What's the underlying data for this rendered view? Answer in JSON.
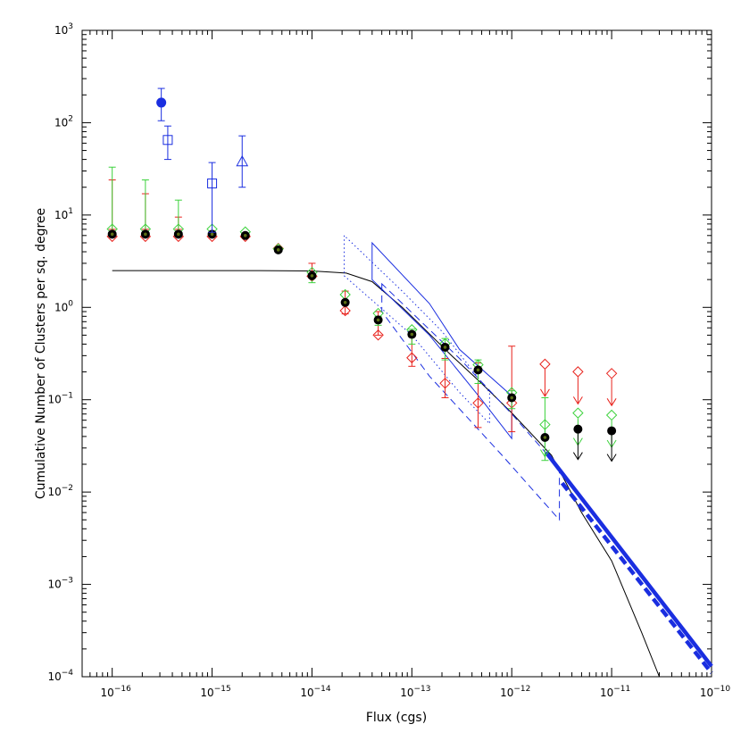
{
  "chart_data": {
    "type": "scatter",
    "xlabel": "Flux (cgs)",
    "ylabel": "Cumulative Number of Clusters per sq. degree",
    "x_scale": "log",
    "y_scale": "log",
    "xlim": [
      5e-17,
      1e-10
    ],
    "ylim": [
      0.0001,
      1000.0
    ],
    "x_ticks": [
      {
        "value": 1e-16,
        "base": "10",
        "exp": "−16"
      },
      {
        "value": 1e-15,
        "base": "10",
        "exp": "−15"
      },
      {
        "value": 1e-14,
        "base": "10",
        "exp": "−14"
      },
      {
        "value": 1e-13,
        "base": "10",
        "exp": "−13"
      },
      {
        "value": 1e-12,
        "base": "10",
        "exp": "−12"
      },
      {
        "value": 1e-11,
        "base": "10",
        "exp": "−11"
      },
      {
        "value": 1e-10,
        "base": "10",
        "exp": "−10"
      }
    ],
    "y_ticks": [
      {
        "value": 0.0001,
        "base": "10",
        "exp": "−4"
      },
      {
        "value": 0.001,
        "base": "10",
        "exp": "−3"
      },
      {
        "value": 0.01,
        "base": "10",
        "exp": "−2"
      },
      {
        "value": 0.1,
        "base": "10",
        "exp": "−1"
      },
      {
        "value": 1,
        "base": "10",
        "exp": "0"
      },
      {
        "value": 10,
        "base": "10",
        "exp": "1"
      },
      {
        "value": 100,
        "base": "10",
        "exp": "2"
      },
      {
        "value": 1000,
        "base": "10",
        "exp": "3"
      }
    ],
    "grid": false,
    "legend": "none",
    "colors": {
      "black": "#000000",
      "red": "#e8221c",
      "green": "#3cd23c",
      "olive": "#5a6e14",
      "blue": "#1a2ee0"
    },
    "lines": [
      {
        "id": "model-curve",
        "color": "black",
        "dash": "solid",
        "width": 1,
        "points": [
          [
            1e-16,
            2.5
          ],
          [
            1e-15,
            2.5
          ],
          [
            3e-15,
            2.5
          ],
          [
            1e-14,
            2.48
          ],
          [
            2.2e-14,
            2.35
          ],
          [
            4e-14,
            1.9
          ],
          [
            8e-14,
            1.0
          ],
          [
            1.3e-13,
            0.6
          ],
          [
            2.5e-13,
            0.3
          ],
          [
            5e-13,
            0.15
          ],
          [
            1e-12,
            0.072
          ],
          [
            2.5e-12,
            0.025
          ],
          [
            5e-12,
            0.006
          ],
          [
            1e-11,
            0.0018
          ],
          [
            2e-11,
            0.0003
          ],
          [
            3e-11,
            0.0001
          ]
        ]
      },
      {
        "id": "blue-bold-solid",
        "color": "blue",
        "dash": "solid",
        "width": 4.5,
        "points": [
          [
            2.2e-12,
            0.027
          ],
          [
            1e-10,
            0.00013
          ]
        ]
      },
      {
        "id": "blue-bold-dashed",
        "color": "blue",
        "dash": "dashed",
        "width": 4.5,
        "points": [
          [
            3.2e-12,
            0.0125
          ],
          [
            1e-10,
            0.00011
          ]
        ]
      },
      {
        "id": "bowtie-solid",
        "color": "blue",
        "dash": "solid",
        "width": 1,
        "closed": true,
        "points": [
          [
            4e-14,
            5.0
          ],
          [
            4e-14,
            2.0
          ],
          [
            1.5e-13,
            0.5
          ],
          [
            5e-13,
            0.1
          ],
          [
            1e-12,
            0.038
          ],
          [
            1e-12,
            0.11
          ],
          [
            3e-13,
            0.35
          ],
          [
            1.5e-13,
            1.1
          ]
        ]
      },
      {
        "id": "bowtie-dotted",
        "color": "blue",
        "dash": "dotted",
        "width": 1,
        "closed": true,
        "points": [
          [
            2.1e-14,
            6.0
          ],
          [
            2.1e-14,
            2.2
          ],
          [
            1e-13,
            0.5
          ],
          [
            3e-13,
            0.12
          ],
          [
            6e-13,
            0.055
          ],
          [
            6e-13,
            0.12
          ],
          [
            2e-13,
            0.55
          ],
          [
            8e-14,
            1.5
          ]
        ]
      },
      {
        "id": "bowtie-dashed",
        "color": "blue",
        "dash": "dashed",
        "width": 1,
        "closed": true,
        "points": [
          [
            5e-14,
            1.8
          ],
          [
            5e-14,
            0.9
          ],
          [
            1.5e-13,
            0.18
          ],
          [
            8e-13,
            0.025
          ],
          [
            3e-12,
            0.005
          ],
          [
            3e-12,
            0.018
          ],
          [
            1e-12,
            0.07
          ],
          [
            3e-13,
            0.28
          ]
        ]
      }
    ],
    "series": [
      {
        "id": "red-diamonds",
        "color": "red",
        "marker": "diamond",
        "offset": 8,
        "points": [
          {
            "x": 1e-16,
            "y": 7.0,
            "lo": 7.0,
            "hi": 24
          },
          {
            "x": 2.15e-16,
            "y": 7.0,
            "lo": 7.0,
            "hi": 17
          },
          {
            "x": 4.6e-16,
            "y": 7.0,
            "lo": 7.0,
            "hi": 9.5
          },
          {
            "x": 1e-15,
            "y": 7.0
          },
          {
            "x": 2.15e-15,
            "y": 7.0
          },
          {
            "x": 4.6e-15,
            "y": 5.2
          },
          {
            "x": 1e-14,
            "y": 2.6,
            "lo": 2.3,
            "hi": 3.0
          },
          {
            "x": 2.15e-14,
            "y": 1.1,
            "lo": 0.85,
            "hi": 1.5
          },
          {
            "x": 4.6e-14,
            "y": 0.6,
            "lo": 0.5,
            "hi": 0.9
          },
          {
            "x": 1e-13,
            "y": 0.34,
            "lo": 0.23,
            "hi": 0.48
          },
          {
            "x": 2.15e-13,
            "y": 0.18,
            "lo": 0.105,
            "hi": 0.28
          },
          {
            "x": 4.6e-13,
            "y": 0.11,
            "lo": 0.05,
            "hi": 0.25
          },
          {
            "x": 1e-12,
            "y": 0.11,
            "lo": 0.045,
            "hi": 0.38
          },
          {
            "x": 2.15e-12,
            "y": 0.29,
            "upper_limit": true
          },
          {
            "x": 4.6e-12,
            "y": 0.24,
            "upper_limit": true
          },
          {
            "x": 1e-11,
            "y": 0.23,
            "upper_limit": true
          }
        ]
      },
      {
        "id": "green-diamonds",
        "color": "green",
        "marker": "diamond",
        "offset": -8,
        "points": [
          {
            "x": 1e-16,
            "y": 5.9,
            "lo": 5.9,
            "hi": 33
          },
          {
            "x": 2.15e-16,
            "y": 5.9,
            "lo": 5.9,
            "hi": 24
          },
          {
            "x": 4.6e-16,
            "y": 5.9,
            "lo": 5.9,
            "hi": 14.5
          },
          {
            "x": 1e-15,
            "y": 5.9
          },
          {
            "x": 2.15e-15,
            "y": 5.5
          },
          {
            "x": 4.6e-15,
            "y": 3.6
          },
          {
            "x": 1e-14,
            "y": 2.0,
            "lo": 1.85,
            "hi": 2.25
          },
          {
            "x": 2.15e-14,
            "y": 1.15
          },
          {
            "x": 4.6e-14,
            "y": 0.72,
            "lo": 0.64,
            "hi": 0.8
          },
          {
            "x": 1e-13,
            "y": 0.48,
            "lo": 0.4,
            "hi": 0.58
          },
          {
            "x": 2.15e-13,
            "y": 0.34,
            "lo": 0.27,
            "hi": 0.46
          },
          {
            "x": 4.6e-13,
            "y": 0.2,
            "lo": 0.15,
            "hi": 0.27
          },
          {
            "x": 1e-12,
            "y": 0.1,
            "lo": 0.08,
            "hi": 0.125
          },
          {
            "x": 2.15e-12,
            "y": 0.045,
            "upper_limit": true,
            "err_lo": 0.022,
            "err_hi": 0.105
          },
          {
            "x": 4.6e-12,
            "y": 0.06,
            "upper_limit": true
          },
          {
            "x": 1e-11,
            "y": 0.057,
            "upper_limit": true
          }
        ]
      },
      {
        "id": "black-dots",
        "color": "black",
        "marker": "filled-circle",
        "size": 4.5,
        "offset": 0,
        "points": [
          {
            "x": 1e-16,
            "y": 6.2
          },
          {
            "x": 2.15e-16,
            "y": 6.2
          },
          {
            "x": 4.6e-16,
            "y": 6.2
          },
          {
            "x": 1e-15,
            "y": 6.2
          },
          {
            "x": 2.15e-15,
            "y": 6.0
          },
          {
            "x": 4.6e-15,
            "y": 4.2
          },
          {
            "x": 1e-14,
            "y": 2.2
          },
          {
            "x": 2.15e-14,
            "y": 1.13
          },
          {
            "x": 4.6e-14,
            "y": 0.73
          },
          {
            "x": 1e-13,
            "y": 0.51
          },
          {
            "x": 2.15e-13,
            "y": 0.37
          },
          {
            "x": 4.6e-13,
            "y": 0.21
          },
          {
            "x": 1e-12,
            "y": 0.105
          },
          {
            "x": 2.15e-12,
            "y": 0.039
          },
          {
            "x": 4.6e-12,
            "y": 0.048,
            "upper_limit": true
          },
          {
            "x": 1e-11,
            "y": 0.046,
            "upper_limit": true
          }
        ]
      },
      {
        "id": "blue-filled-circle",
        "color": "blue",
        "marker": "filled-circle",
        "size": 5,
        "offset": 0,
        "points": [
          {
            "x": 3.1e-16,
            "y": 165,
            "lo": 105,
            "hi": 235
          }
        ]
      },
      {
        "id": "blue-squares",
        "color": "blue",
        "marker": "open-square",
        "size": 5,
        "offset": 0,
        "points": [
          {
            "x": 3.6e-16,
            "y": 65,
            "lo": 40,
            "hi": 92
          },
          {
            "x": 1e-15,
            "y": 22,
            "lo": 6.5,
            "hi": 37
          }
        ]
      },
      {
        "id": "blue-triangle",
        "color": "blue",
        "marker": "open-triangle",
        "size": 6,
        "offset": 0,
        "points": [
          {
            "x": 2e-15,
            "y": 38,
            "lo": 20,
            "hi": 72
          }
        ]
      }
    ]
  }
}
